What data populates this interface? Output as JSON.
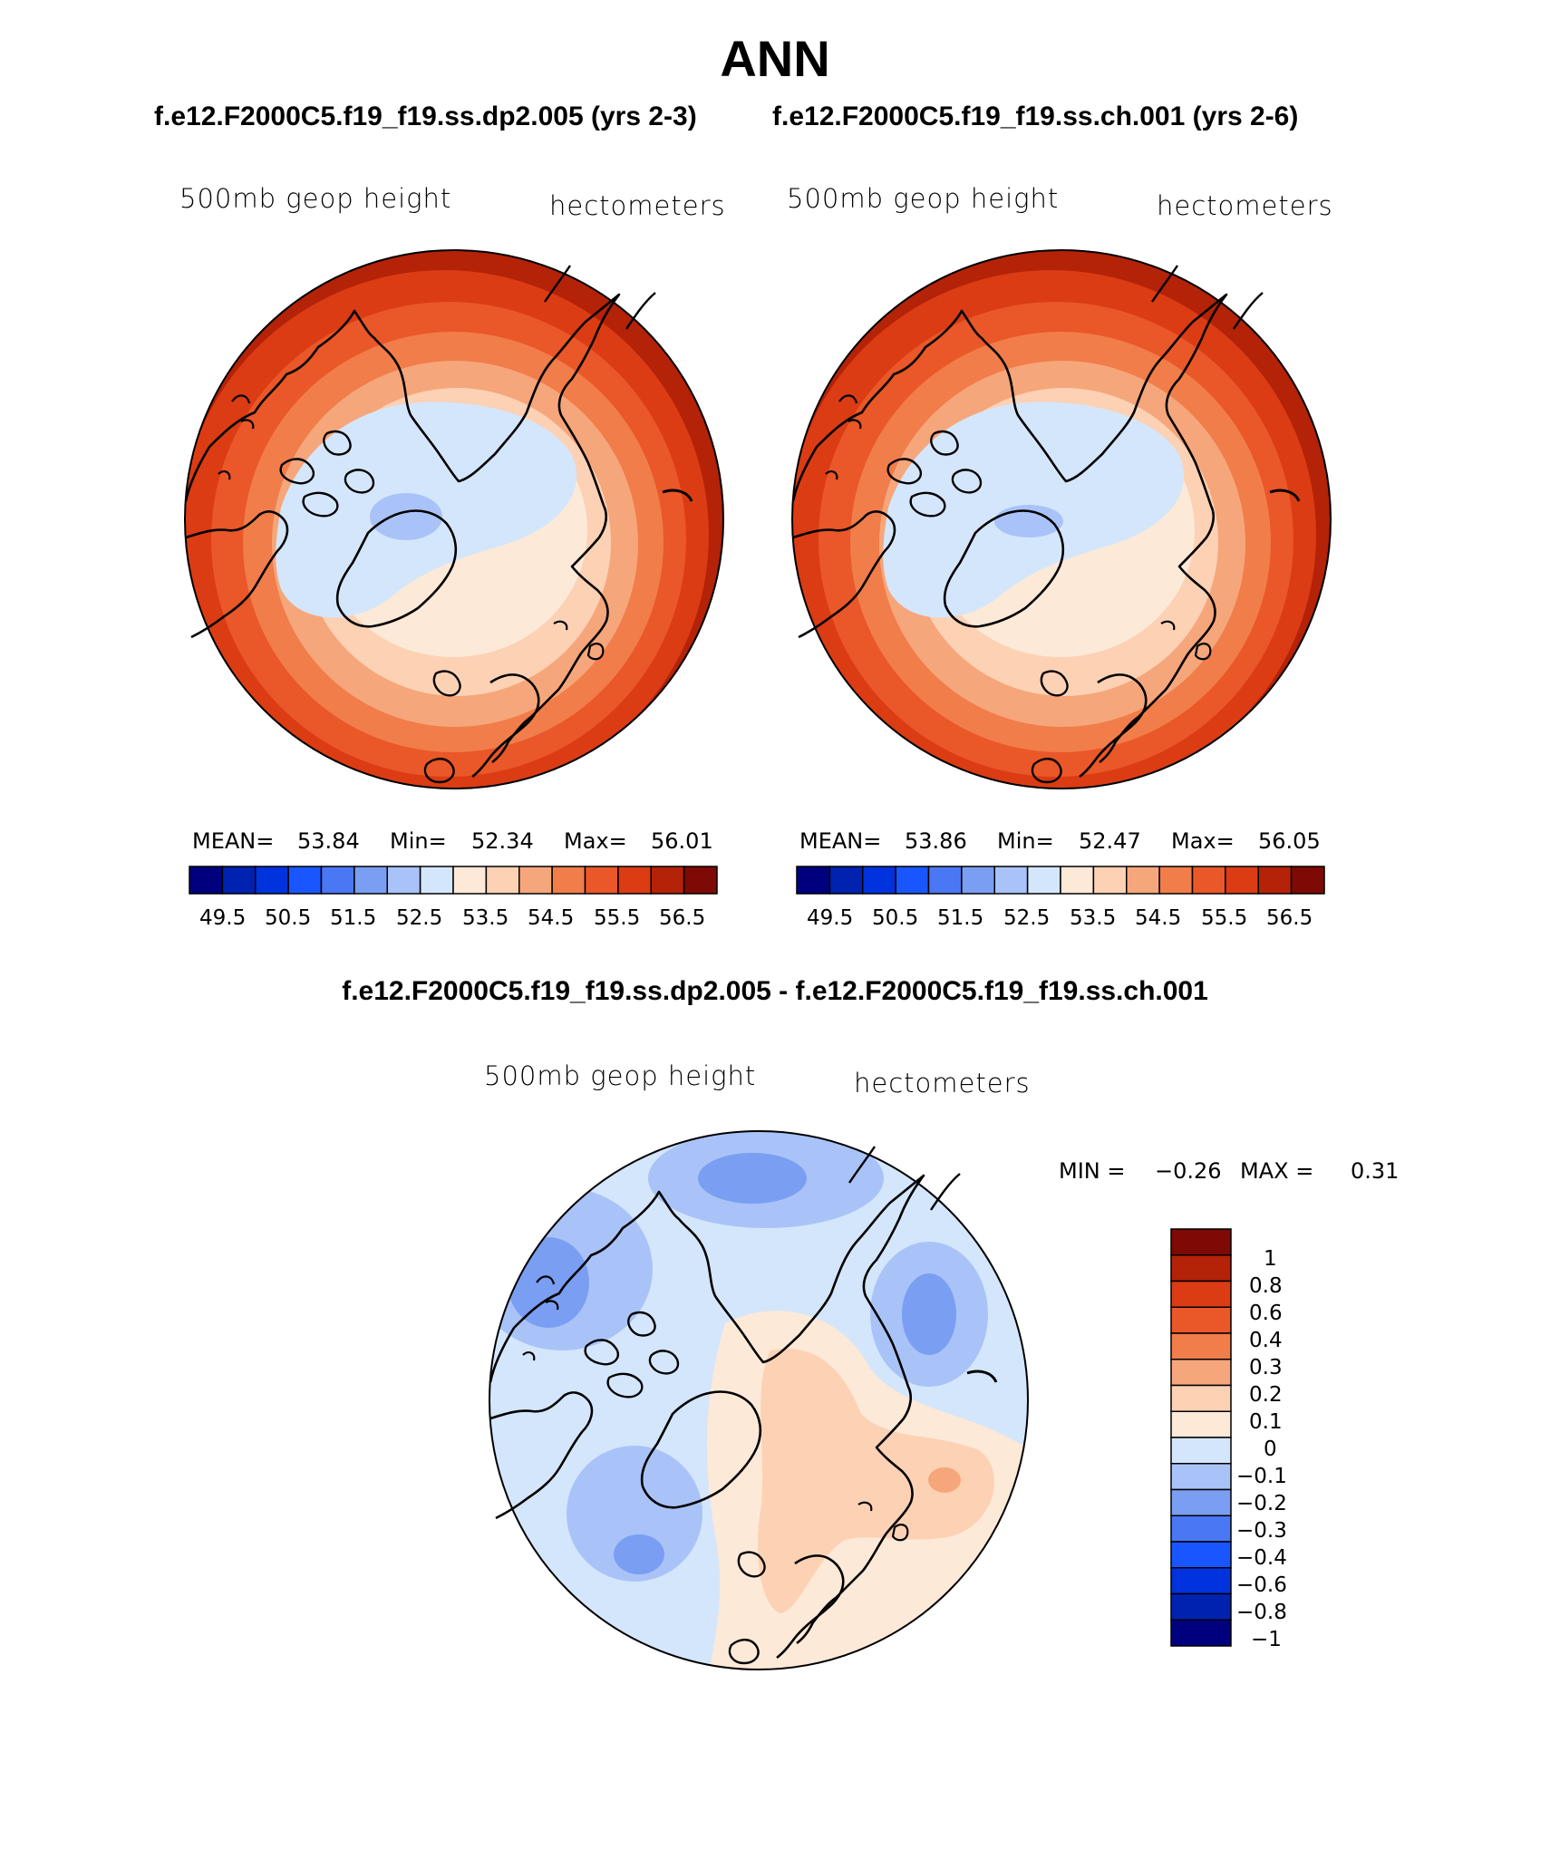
{
  "title": "ANN",
  "subtitles": [
    "f.e12.F2000C5.f19_f19.ss.dp2.005 (yrs 2-3)",
    "f.e12.F2000C5.f19_f19.ss.ch.001 (yrs 2-6)"
  ],
  "diff_title": "f.e12.F2000C5.f19_f19.ss.dp2.005 - f.e12.F2000C5.f19_f19.ss.ch.001",
  "colors": {
    "abs_levels": [
      "#00007f",
      "#0022b0",
      "#0033dd",
      "#1a56ff",
      "#4a78f4",
      "#7a9ef2",
      "#a9c3f8",
      "#d4e6fb",
      "#fde9d7",
      "#fcd1b4",
      "#f6a67b",
      "#f17d4a",
      "#ea5728",
      "#db3c14",
      "#b42208",
      "#7d0a05"
    ],
    "diff_levels": [
      "#00007f",
      "#0022b0",
      "#0033dd",
      "#1a56ff",
      "#4a78f4",
      "#7a9ef2",
      "#a9c3f8",
      "#d4e6fb",
      "#fde9d7",
      "#fcd1b4",
      "#f6a67b",
      "#f17d4a",
      "#ea5728",
      "#db3c14",
      "#b42208",
      "#7d0a05"
    ]
  },
  "chart_data": [
    {
      "type": "heatmap",
      "projection": "polar-stereographic (Northern Hemisphere)",
      "variable_label": "500mb geop height",
      "units_label": "hectometers",
      "stats": {
        "mean_label": "MEAN=",
        "mean": "53.84",
        "min_label": "Min=",
        "min": "52.34",
        "max_label": "Max=",
        "max": "56.01"
      },
      "colorbar_ticks": [
        "49.5",
        "50.5",
        "51.5",
        "52.5",
        "53.5",
        "54.5",
        "55.5",
        "56.5"
      ],
      "contour_levels": [
        49,
        49.5,
        50,
        50.5,
        51,
        51.5,
        52,
        52.5,
        53,
        53.5,
        54,
        54.5,
        55,
        55.5,
        56,
        56.5
      ]
    },
    {
      "type": "heatmap",
      "projection": "polar-stereographic (Northern Hemisphere)",
      "variable_label": "500mb geop height",
      "units_label": "hectometers",
      "stats": {
        "mean_label": "MEAN=",
        "mean": "53.86",
        "min_label": "Min=",
        "min": "52.47",
        "max_label": "Max=",
        "max": "56.05"
      },
      "colorbar_ticks": [
        "49.5",
        "50.5",
        "51.5",
        "52.5",
        "53.5",
        "54.5",
        "55.5",
        "56.5"
      ],
      "contour_levels": [
        49,
        49.5,
        50,
        50.5,
        51,
        51.5,
        52,
        52.5,
        53,
        53.5,
        54,
        54.5,
        55,
        55.5,
        56,
        56.5
      ]
    },
    {
      "type": "heatmap",
      "projection": "polar-stereographic (Northern Hemisphere)",
      "variable_label": "500mb geop height",
      "units_label": "hectometers",
      "stats": {
        "min_label": "MIN =",
        "min": "−0.26",
        "max_label": "MAX =",
        "max": "0.31"
      },
      "colorbar_ticks": [
        "1",
        "0.8",
        "0.6",
        "0.4",
        "0.3",
        "0.2",
        "0.1",
        "0",
        "−0.1",
        "−0.2",
        "−0.3",
        "−0.4",
        "−0.6",
        "−0.8",
        "−1"
      ]
    }
  ]
}
